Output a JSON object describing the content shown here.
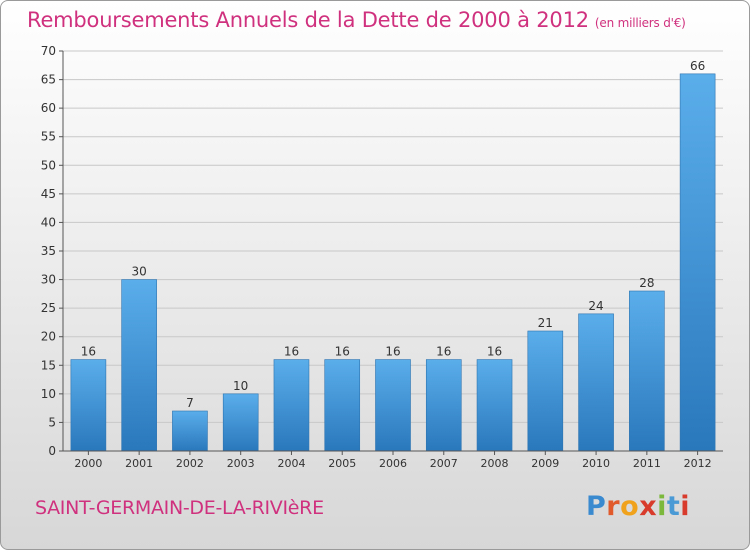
{
  "header": {
    "title": "Remboursements Annuels de la Dette de 2000 à 2012",
    "unit": "(en milliers d'€)"
  },
  "footer": {
    "commune": "SAINT-GERMAIN-DE-LA-RIVIèRE",
    "logo": {
      "text": "Proxiti",
      "colors": [
        "#3a8ad0",
        "#e05a2c",
        "#f0a21c",
        "#d83b2b",
        "#7cb83c",
        "#4a9ad6",
        "#d83b2b"
      ]
    }
  },
  "colors": {
    "bar_top": "#5aaeea",
    "bar_bottom": "#2a78bc",
    "axis": "#555555",
    "grid": "#c8c8c8"
  },
  "chart_data": {
    "type": "bar",
    "categories": [
      "2000",
      "2001",
      "2002",
      "2003",
      "2004",
      "2005",
      "2006",
      "2007",
      "2008",
      "2009",
      "2010",
      "2011",
      "2012"
    ],
    "values": [
      16,
      30,
      7,
      10,
      16,
      16,
      16,
      16,
      16,
      21,
      24,
      28,
      66
    ],
    "data_labels": [
      "16",
      "30",
      "7",
      "10",
      "16",
      "16",
      "16",
      "16",
      "16",
      "21",
      "24",
      "28",
      "66"
    ],
    "ylim": [
      0,
      70
    ],
    "yticks": [
      0,
      5,
      10,
      15,
      20,
      25,
      30,
      35,
      40,
      45,
      50,
      55,
      60,
      65,
      70
    ],
    "grid": true,
    "xlabel": "",
    "ylabel": ""
  }
}
